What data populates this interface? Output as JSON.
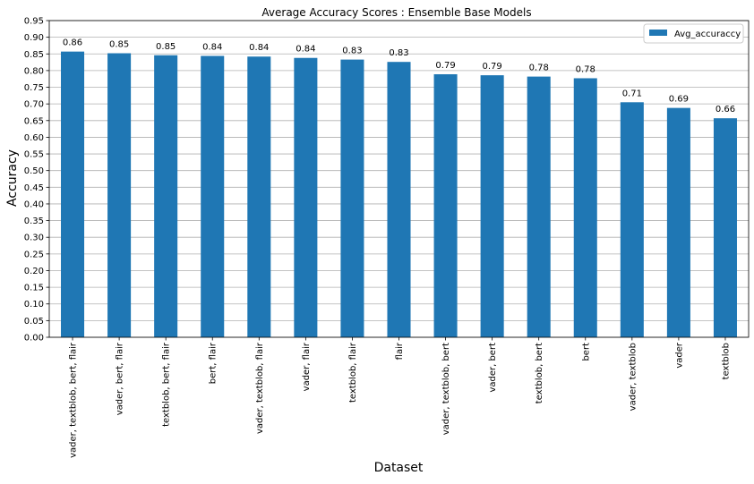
{
  "chart_data": {
    "type": "bar",
    "title": "Average Accuracy Scores : Ensemble Base Models",
    "xlabel": "Dataset",
    "ylabel": "Accuracy",
    "ylim": [
      0,
      0.95
    ],
    "yticks": [
      "0.00",
      "0.05",
      "0.10",
      "0.15",
      "0.20",
      "0.25",
      "0.30",
      "0.35",
      "0.40",
      "0.45",
      "0.50",
      "0.55",
      "0.60",
      "0.65",
      "0.70",
      "0.75",
      "0.80",
      "0.85",
      "0.90",
      "0.95"
    ],
    "grid": "horizontal",
    "legend_position": "top-right",
    "color": "#1f77b4",
    "categories": [
      "vader, textblob, bert, flair",
      "vader, bert, flair",
      "textblob, bert, flair",
      "bert, flair",
      "vader, textblob, flair",
      "vader, flair",
      "textblob, flair",
      "flair",
      "vader, textblob, bert",
      "vader, bert",
      "textblob, bert",
      "bert",
      "vader, textblob",
      "vader",
      "textblob"
    ],
    "series": [
      {
        "name": "Avg_accuraccy",
        "values": [
          0.857,
          0.852,
          0.846,
          0.844,
          0.842,
          0.838,
          0.833,
          0.826,
          0.789,
          0.786,
          0.782,
          0.777,
          0.705,
          0.688,
          0.657
        ],
        "labels": [
          "0.86",
          "0.85",
          "0.85",
          "0.84",
          "0.84",
          "0.84",
          "0.83",
          "0.83",
          "0.79",
          "0.79",
          "0.78",
          "0.78",
          "0.71",
          "0.69",
          "0.66"
        ]
      }
    ]
  }
}
